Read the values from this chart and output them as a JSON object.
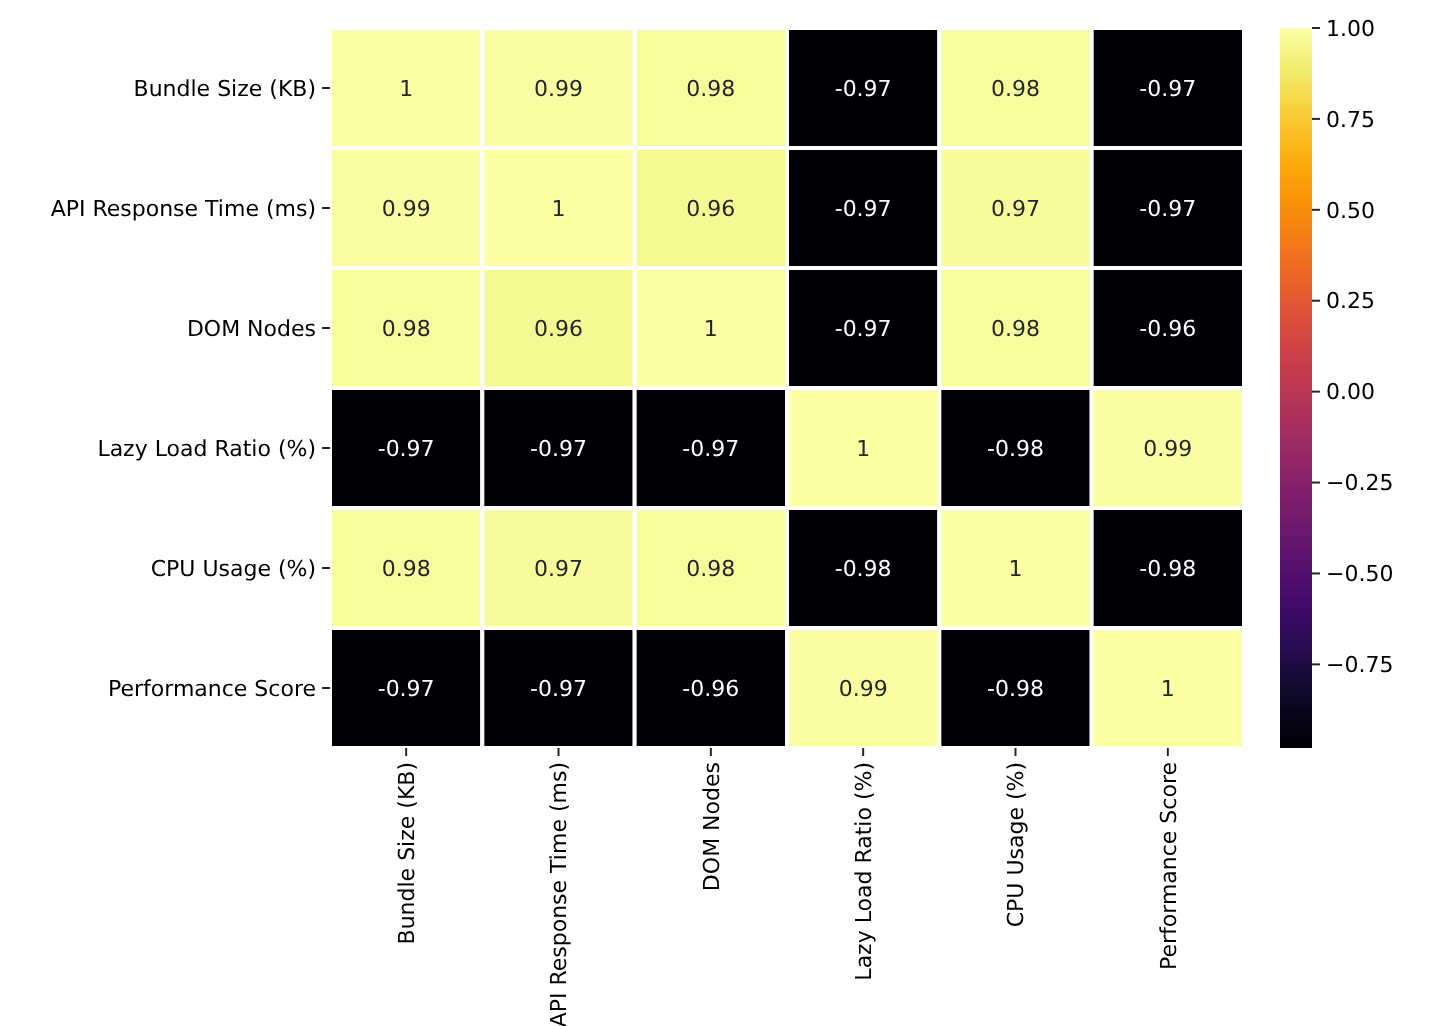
{
  "chart_data": {
    "type": "heatmap",
    "categories": [
      "Bundle Size (KB)",
      "API Response Time (ms)",
      "DOM Nodes",
      "Lazy Load Ratio (%)",
      "CPU Usage (%)",
      "Performance Score"
    ],
    "y_categories": [
      "Bundle Size (KB)",
      "API Response Time (ms)",
      "DOM Nodes",
      "Lazy Load Ratio (%)",
      "CPU Usage (%)",
      "Performance Score"
    ],
    "cells": [
      [
        1,
        0.99,
        0.98,
        -0.97,
        0.98,
        -0.97
      ],
      [
        0.99,
        1,
        0.96,
        -0.97,
        0.97,
        -0.97
      ],
      [
        0.98,
        0.96,
        1,
        -0.97,
        0.98,
        -0.96
      ],
      [
        -0.97,
        -0.97,
        -0.97,
        1,
        -0.98,
        0.99
      ],
      [
        0.98,
        0.97,
        0.98,
        -0.98,
        1,
        -0.98
      ],
      [
        -0.97,
        -0.97,
        -0.96,
        0.99,
        -0.98,
        1
      ]
    ],
    "clim": [
      -0.98,
      1
    ],
    "cticks": [
      {
        "value": 1,
        "label": "1.00"
      },
      {
        "value": 0.75,
        "label": "0.75"
      },
      {
        "value": 0.5,
        "label": "0.50"
      },
      {
        "value": 0.25,
        "label": "0.25"
      },
      {
        "value": 0,
        "label": "0.00"
      },
      {
        "value": -0.25,
        "label": "−0.25"
      },
      {
        "value": -0.5,
        "label": "−0.50"
      },
      {
        "value": -0.75,
        "label": "−0.75"
      }
    ],
    "data_labels": true
  }
}
